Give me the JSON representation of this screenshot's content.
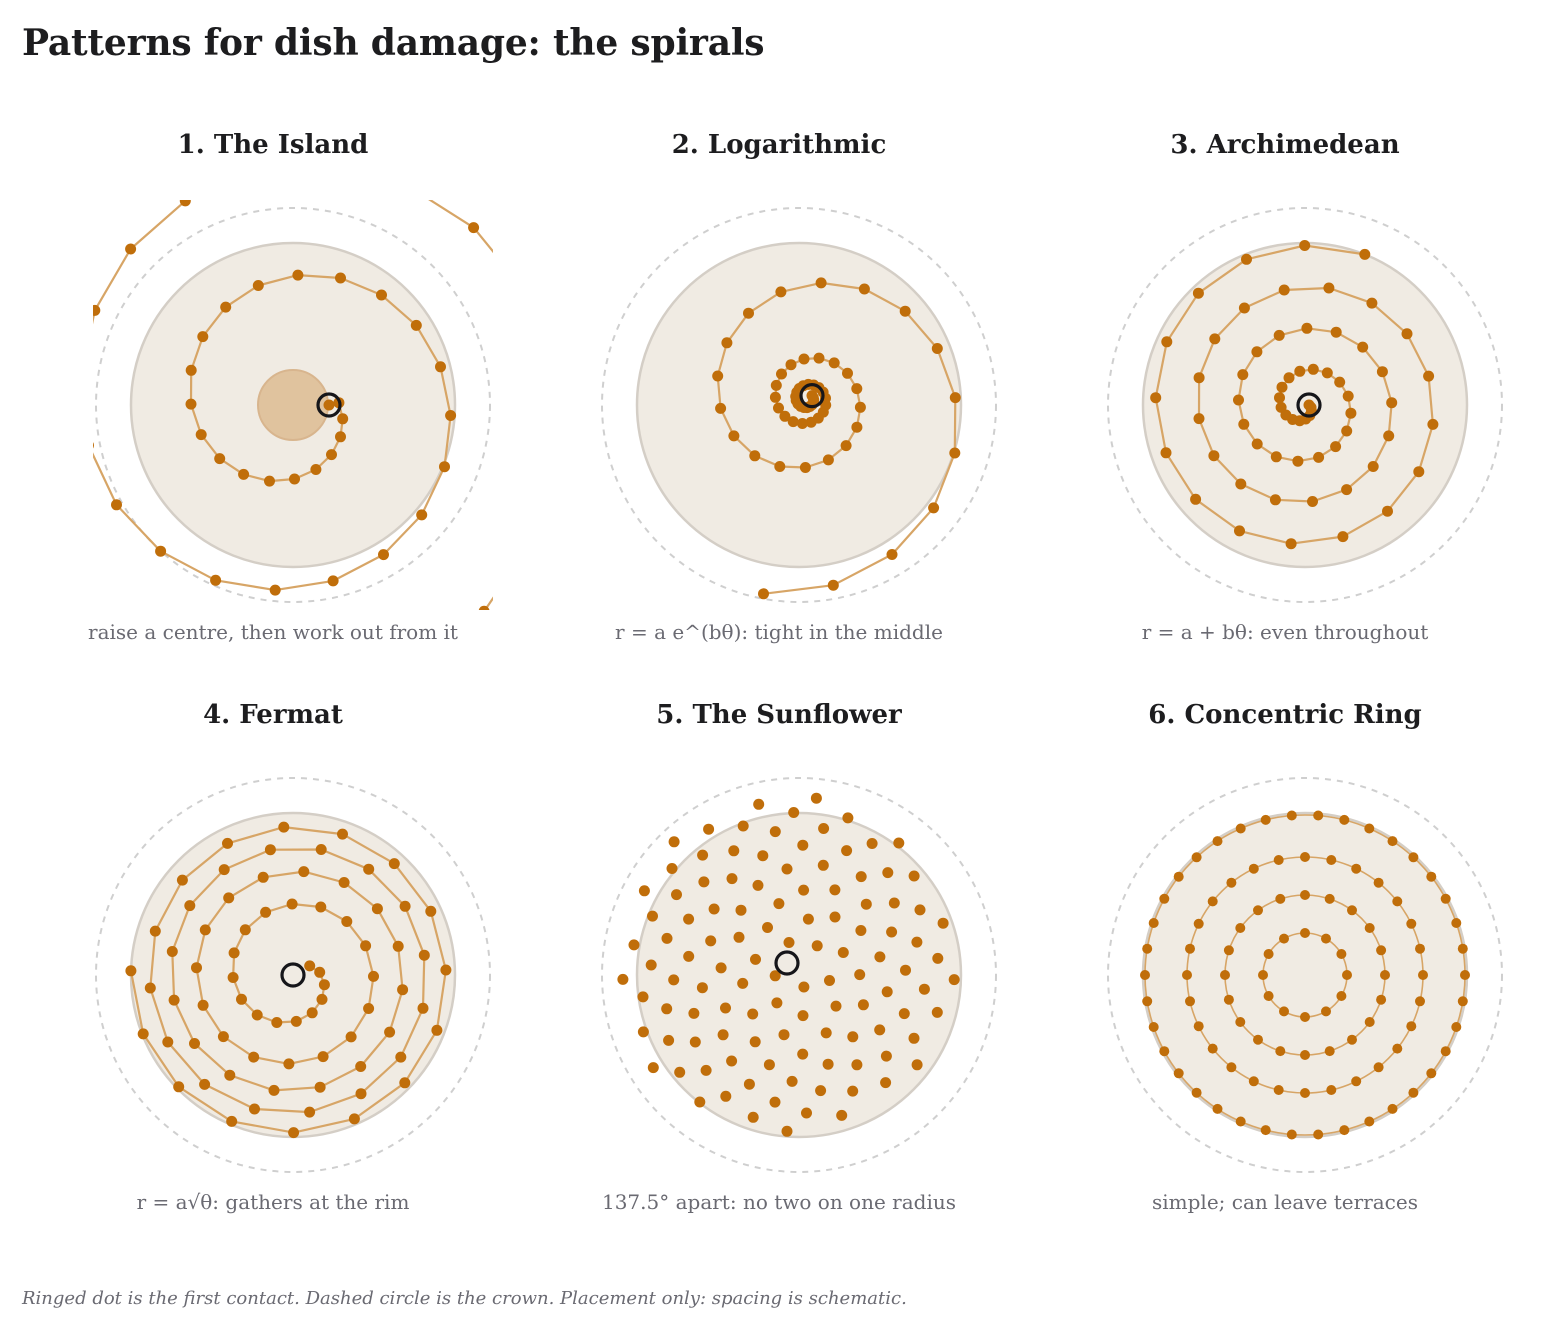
{
  "title": "Patterns for dish damage: the spirals",
  "footnote": "Ringed dot is the first contact. Dashed circle is the crown. Placement only: spacing is schematic.",
  "colors": {
    "dish_fill": "#f0ebe3",
    "dot": "#c06e0a",
    "path": "#d7a566",
    "contact_ring": "#16161a",
    "crown": "#cfcfcf",
    "island": "#e0c19b"
  },
  "panels": [
    {
      "id": "island",
      "title": "1. The Island",
      "caption": "raise a centre, then work out from it",
      "pattern": "island"
    },
    {
      "id": "logarithmic",
      "title": "2. Logarithmic",
      "caption": "r = a e^(bθ): tight in the middle",
      "pattern": "logarithmic"
    },
    {
      "id": "archimedean",
      "title": "3. Archimedean",
      "caption": "r = a + bθ: even throughout",
      "pattern": "archimedean"
    },
    {
      "id": "fermat",
      "title": "4. Fermat",
      "caption": "r = a√θ: gathers at the rim",
      "pattern": "fermat"
    },
    {
      "id": "sunflower",
      "title": "5. The Sunflower",
      "caption": "137.5° apart: no two on one radius",
      "pattern": "sunflower"
    },
    {
      "id": "concentric",
      "title": "6. Concentric Ring",
      "caption": "simple; can leave terraces",
      "pattern": "concentric"
    }
  ]
}
